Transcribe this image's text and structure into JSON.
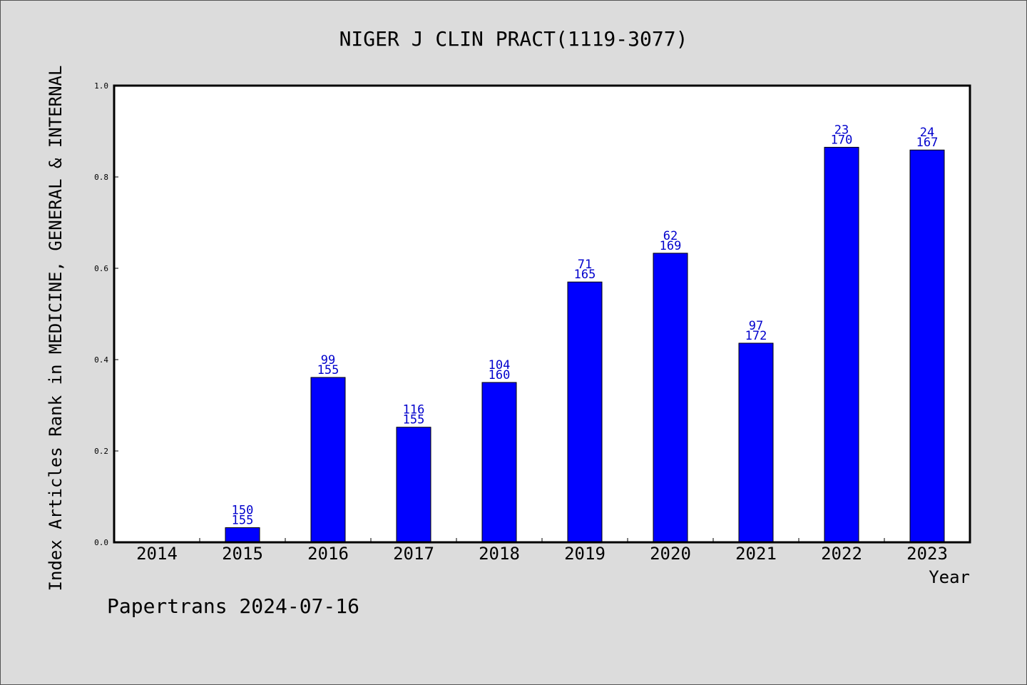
{
  "footer": "Papertrans 2024-07-16",
  "colors": {
    "background": "#dcdcdc",
    "bar": "#0000ff",
    "bar_label": "#0000cc",
    "axis": "#000000"
  },
  "chart_data": {
    "type": "bar",
    "title": "NIGER J CLIN PRACT(1119-3077)",
    "xlabel": "Year",
    "ylabel": "Index Articles Rank in MEDICINE, GENERAL & INTERNAL",
    "categories": [
      "2014",
      "2015",
      "2016",
      "2017",
      "2018",
      "2019",
      "2020",
      "2021",
      "2022",
      "2023"
    ],
    "values": [
      0,
      0.032,
      0.361,
      0.252,
      0.35,
      0.57,
      0.633,
      0.436,
      0.865,
      0.859
    ],
    "rank": [
      "",
      "150",
      "99",
      "116",
      "104",
      "71",
      "62",
      "97",
      "23",
      "24"
    ],
    "total": [
      "",
      "155",
      "155",
      "155",
      "160",
      "165",
      "169",
      "172",
      "170",
      "167"
    ],
    "ylim": [
      0,
      1.0
    ],
    "yticks": [
      "0.0",
      "0.2",
      "0.4",
      "0.6",
      "0.8",
      "1.0"
    ],
    "grid": false,
    "legend": "none"
  }
}
